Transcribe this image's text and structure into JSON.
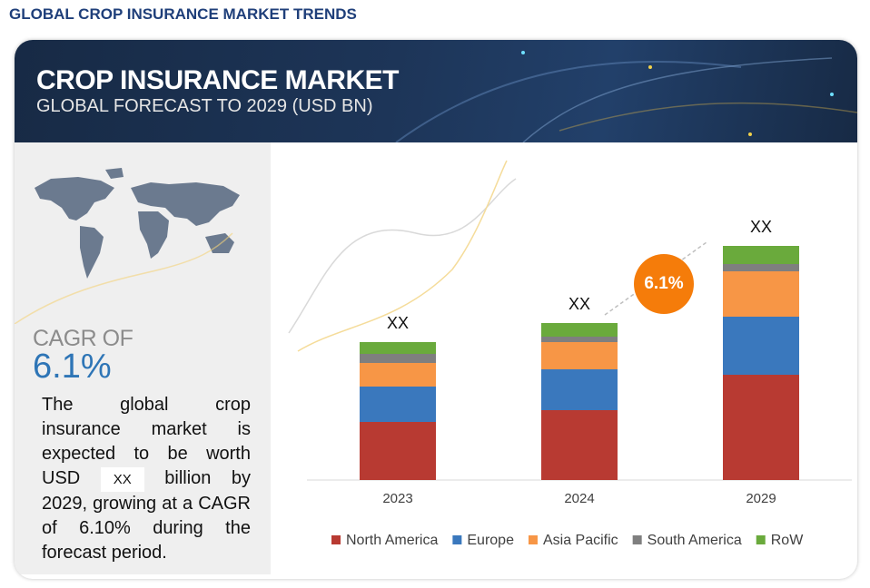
{
  "page_title": "GLOBAL CROP INSURANCE MARKET TRENDS",
  "header": {
    "title": "CROP INSURANCE MARKET",
    "subtitle": "GLOBAL FORECAST TO 2029 (USD BN)"
  },
  "sidebar": {
    "cagr_label": "CAGR OF",
    "cagr_value": "6.1%",
    "description": {
      "before": "The global crop insurance market is expected to be worth USD",
      "value": "XX",
      "after": "billion by 2029, growing at a CAGR of 6.10% during the forecast period."
    }
  },
  "chart_data": {
    "type": "stacked_bar",
    "categories": [
      "2023",
      "2024",
      "2029"
    ],
    "series": [
      {
        "name": "North America",
        "color": "#b83a32",
        "values": [
          64,
          77,
          116
        ]
      },
      {
        "name": "Europe",
        "color": "#3a78bd",
        "values": [
          39,
          45,
          64
        ]
      },
      {
        "name": "Asia Pacific",
        "color": "#f79646",
        "values": [
          26,
          30,
          50
        ]
      },
      {
        "name": "South America",
        "color": "#7f7f7f",
        "values": [
          10,
          6,
          8
        ]
      },
      {
        "name": "RoW",
        "color": "#6aaa3c",
        "values": [
          13,
          15,
          20
        ]
      }
    ],
    "total_labels": [
      "XX",
      "XX",
      "XX"
    ],
    "cagr_badge": "6.1%"
  }
}
